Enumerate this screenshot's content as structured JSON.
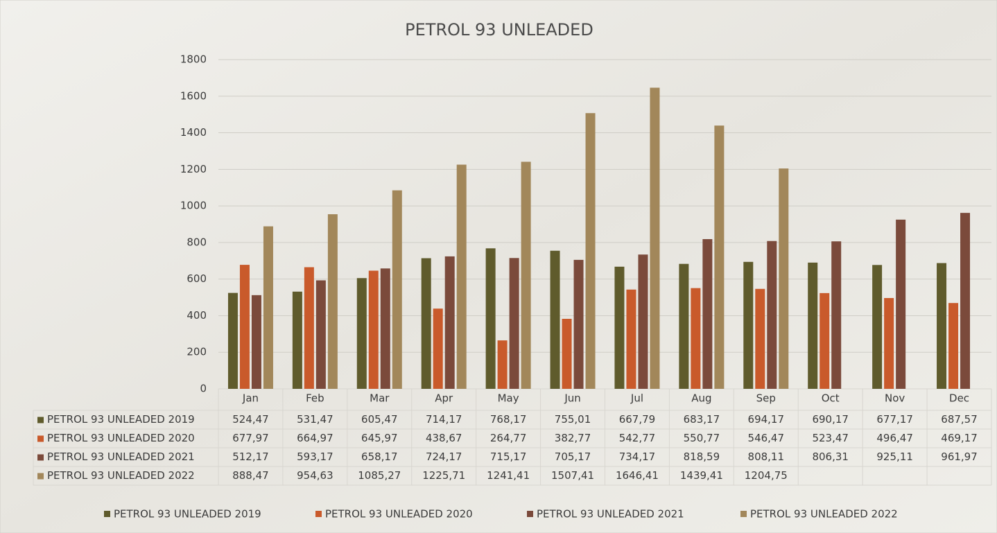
{
  "chart_data": {
    "type": "bar",
    "title": "PETROL 93 UNLEADED",
    "categories": [
      "Jan",
      "Feb",
      "Mar",
      "Apr",
      "May",
      "Jun",
      "Jul",
      "Aug",
      "Sep",
      "Oct",
      "Nov",
      "Dec"
    ],
    "ylim": [
      0,
      1800
    ],
    "yticks": [
      0,
      200,
      400,
      600,
      800,
      1000,
      1200,
      1400,
      1600,
      1800
    ],
    "grid": true,
    "legend": "bottom",
    "series": [
      {
        "name": "PETROL 93 UNLEADED 2019",
        "color": "#5f5b2c",
        "values": [
          524.47,
          531.47,
          605.47,
          714.17,
          768.17,
          755.01,
          667.79,
          683.17,
          694.17,
          690.17,
          677.17,
          687.57
        ],
        "value_labels": [
          "524,47",
          "531,47",
          "605,47",
          "714,17",
          "768,17",
          "755,01",
          "667,79",
          "683,17",
          "694,17",
          "690,17",
          "677,17",
          "687,57"
        ]
      },
      {
        "name": "PETROL 93 UNLEADED 2020",
        "color": "#c95a2b",
        "values": [
          677.97,
          664.97,
          645.97,
          438.67,
          264.77,
          382.77,
          542.77,
          550.77,
          546.47,
          523.47,
          496.47,
          469.17
        ],
        "value_labels": [
          "677,97",
          "664,97",
          "645,97",
          "438,67",
          "264,77",
          "382,77",
          "542,77",
          "550,77",
          "546,47",
          "523,47",
          "496,47",
          "469,17"
        ]
      },
      {
        "name": "PETROL 93 UNLEADED 2021",
        "color": "#7b4a3b",
        "values": [
          512.17,
          593.17,
          658.17,
          724.17,
          715.17,
          705.17,
          734.17,
          818.59,
          808.11,
          806.31,
          925.11,
          961.97
        ],
        "value_labels": [
          "512,17",
          "593,17",
          "658,17",
          "724,17",
          "715,17",
          "705,17",
          "734,17",
          "818,59",
          "808,11",
          "806,31",
          "925,11",
          "961,97"
        ]
      },
      {
        "name": "PETROL 93 UNLEADED 2022",
        "color": "#a2875a",
        "values": [
          888.47,
          954.63,
          1085.27,
          1225.71,
          1241.41,
          1507.41,
          1646.41,
          1439.41,
          1204.75,
          null,
          null,
          null
        ],
        "value_labels": [
          "888,47",
          "954,63",
          "1085,27",
          "1225,71",
          "1241,41",
          "1507,41",
          "1646,41",
          "1439,41",
          "1204,75",
          null,
          null,
          null
        ]
      }
    ]
  }
}
